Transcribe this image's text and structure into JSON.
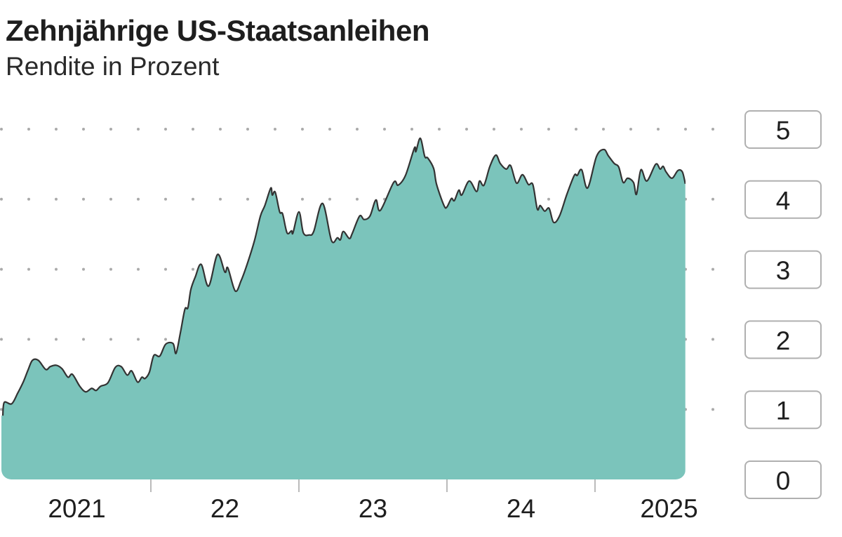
{
  "chart_data": {
    "type": "area",
    "title": "Zehnjährige US-Staatsanleihen",
    "subtitle": "Rendite in Prozent",
    "xlabel": "",
    "ylabel": "",
    "x_tick_labels": [
      "2021",
      "22",
      "23",
      "24",
      "2025"
    ],
    "y_ticks": [
      0,
      1,
      2,
      3,
      4,
      5
    ],
    "ylim": [
      0,
      5
    ],
    "xlim": [
      2021.0,
      2025.61
    ],
    "grid": "dotted horizontal",
    "fill_color": "#7bc4bb",
    "line_color": "#333333",
    "x": [
      2021.0,
      2021.01,
      2021.06,
      2021.1,
      2021.14,
      2021.17,
      2021.2,
      2021.24,
      2021.29,
      2021.32,
      2021.36,
      2021.4,
      2021.44,
      2021.47,
      2021.52,
      2021.56,
      2021.6,
      2021.63,
      2021.66,
      2021.71,
      2021.76,
      2021.8,
      2021.84,
      2021.87,
      2021.91,
      2021.94,
      2021.96,
      2021.99,
      2022.02,
      2022.06,
      2022.1,
      2022.15,
      2022.17,
      2022.2,
      2022.23,
      2022.25,
      2022.27,
      2022.3,
      2022.34,
      2022.39,
      2022.45,
      2022.5,
      2022.52,
      2022.57,
      2022.61,
      2022.65,
      2022.7,
      2022.74,
      2022.77,
      2022.81,
      2022.82,
      2022.84,
      2022.87,
      2022.89,
      2022.92,
      2022.95,
      2022.96,
      2023.0,
      2023.03,
      2023.07,
      2023.1,
      2023.16,
      2023.22,
      2023.26,
      2023.28,
      2023.3,
      2023.34,
      2023.36,
      2023.41,
      2023.44,
      2023.48,
      2023.52,
      2023.55,
      2023.64,
      2023.67,
      2023.72,
      2023.78,
      2023.79,
      2023.82,
      2023.85,
      2023.87,
      2023.91,
      2023.93,
      2023.98,
      2024.0,
      2024.03,
      2024.05,
      2024.08,
      2024.1,
      2024.15,
      2024.2,
      2024.22,
      2024.25,
      2024.29,
      2024.33,
      2024.36,
      2024.4,
      2024.43,
      2024.47,
      2024.51,
      2024.55,
      2024.58,
      2024.61,
      2024.63,
      2024.66,
      2024.69,
      2024.72,
      2024.76,
      2024.81,
      2024.86,
      2024.88,
      2024.91,
      2024.95,
      2025.01,
      2025.06,
      2025.09,
      2025.13,
      2025.16,
      2025.19,
      2025.22,
      2025.26,
      2025.28,
      2025.31,
      2025.35,
      2025.41,
      2025.44,
      2025.46,
      2025.48,
      2025.52,
      2025.56,
      2025.59,
      2025.61
    ],
    "values": [
      0.91,
      1.1,
      1.08,
      1.23,
      1.4,
      1.56,
      1.7,
      1.7,
      1.57,
      1.61,
      1.63,
      1.58,
      1.46,
      1.5,
      1.33,
      1.25,
      1.3,
      1.27,
      1.33,
      1.38,
      1.6,
      1.61,
      1.49,
      1.55,
      1.39,
      1.46,
      1.44,
      1.53,
      1.77,
      1.76,
      1.93,
      1.94,
      1.8,
      2.1,
      2.43,
      2.45,
      2.71,
      2.89,
      3.07,
      2.76,
      3.21,
      2.96,
      3.02,
      2.69,
      2.84,
      3.07,
      3.41,
      3.76,
      3.91,
      4.16,
      4.06,
      4.1,
      3.82,
      3.79,
      3.52,
      3.55,
      3.52,
      3.82,
      3.52,
      3.49,
      3.54,
      3.94,
      3.41,
      3.45,
      3.42,
      3.54,
      3.44,
      3.51,
      3.76,
      3.71,
      3.76,
      3.99,
      3.84,
      4.24,
      4.2,
      4.34,
      4.73,
      4.68,
      4.87,
      4.61,
      4.59,
      4.44,
      4.21,
      3.91,
      3.89,
      4.01,
      3.98,
      4.13,
      4.06,
      4.26,
      4.11,
      4.26,
      4.2,
      4.47,
      4.63,
      4.51,
      4.43,
      4.48,
      4.23,
      4.35,
      4.21,
      4.21,
      3.86,
      3.91,
      3.83,
      3.87,
      3.67,
      3.76,
      4.07,
      4.34,
      4.34,
      4.42,
      4.16,
      4.61,
      4.71,
      4.62,
      4.51,
      4.46,
      4.24,
      4.3,
      4.24,
      4.07,
      4.42,
      4.26,
      4.5,
      4.43,
      4.47,
      4.39,
      4.3,
      4.41,
      4.39,
      4.22
    ]
  }
}
